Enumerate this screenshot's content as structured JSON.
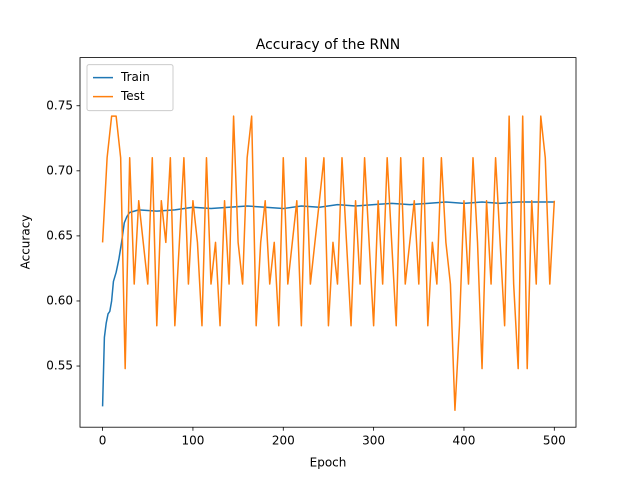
{
  "chart_data": {
    "type": "line",
    "title": "Accuracy of the RNN",
    "xlabel": "Epoch",
    "ylabel": "Accuracy",
    "xlim": [
      -25,
      524
    ],
    "ylim": [
      0.503,
      0.787
    ],
    "xticks": [
      0,
      100,
      200,
      300,
      400,
      500
    ],
    "yticks": [
      0.55,
      {
        "value": 0.6,
        "label": "0.60"
      },
      0.65,
      {
        "value": 0.7,
        "label": "0.70"
      },
      0.75
    ],
    "legend": "upper left",
    "series": [
      {
        "name": "Train",
        "color": "#1f77b4",
        "x": [
          0,
          2,
          4,
          6,
          8,
          10,
          12,
          15,
          18,
          21,
          24,
          27,
          30,
          40,
          60,
          80,
          100,
          120,
          140,
          160,
          180,
          200,
          220,
          240,
          260,
          280,
          300,
          320,
          340,
          360,
          380,
          400,
          420,
          440,
          460,
          480,
          500
        ],
        "values": [
          0.519,
          0.572,
          0.583,
          0.59,
          0.592,
          0.6,
          0.615,
          0.622,
          0.632,
          0.645,
          0.66,
          0.665,
          0.668,
          0.67,
          0.669,
          0.67,
          0.672,
          0.671,
          0.672,
          0.673,
          0.672,
          0.671,
          0.673,
          0.672,
          0.674,
          0.673,
          0.674,
          0.675,
          0.674,
          0.675,
          0.676,
          0.675,
          0.676,
          0.675,
          0.676,
          0.676,
          0.676
        ]
      },
      {
        "name": "Test",
        "color": "#ff7f0e",
        "x": [
          0,
          5,
          10,
          15,
          20,
          25,
          30,
          35,
          40,
          45,
          50,
          55,
          60,
          65,
          70,
          75,
          80,
          85,
          90,
          95,
          100,
          105,
          110,
          115,
          120,
          125,
          130,
          135,
          140,
          145,
          150,
          155,
          160,
          165,
          170,
          175,
          180,
          185,
          190,
          195,
          200,
          205,
          210,
          215,
          220,
          225,
          230,
          235,
          240,
          245,
          250,
          255,
          260,
          265,
          270,
          275,
          280,
          285,
          290,
          295,
          300,
          305,
          310,
          315,
          320,
          325,
          330,
          335,
          340,
          345,
          350,
          355,
          360,
          365,
          370,
          375,
          380,
          385,
          390,
          395,
          400,
          405,
          410,
          415,
          420,
          425,
          430,
          435,
          440,
          445,
          450,
          455,
          460,
          465,
          470,
          475,
          480,
          485,
          490,
          495,
          500
        ],
        "values": [
          0.645,
          0.71,
          0.742,
          0.742,
          0.71,
          0.548,
          0.71,
          0.613,
          0.677,
          0.645,
          0.613,
          0.71,
          0.581,
          0.677,
          0.645,
          0.71,
          0.581,
          0.645,
          0.71,
          0.613,
          0.677,
          0.645,
          0.581,
          0.71,
          0.613,
          0.645,
          0.581,
          0.677,
          0.613,
          0.742,
          0.645,
          0.613,
          0.71,
          0.742,
          0.581,
          0.645,
          0.677,
          0.613,
          0.645,
          0.581,
          0.71,
          0.613,
          0.645,
          0.677,
          0.581,
          0.71,
          0.613,
          0.645,
          0.677,
          0.71,
          0.581,
          0.645,
          0.613,
          0.71,
          0.645,
          0.581,
          0.677,
          0.613,
          0.71,
          0.645,
          0.581,
          0.677,
          0.613,
          0.71,
          0.645,
          0.581,
          0.71,
          0.613,
          0.645,
          0.677,
          0.613,
          0.71,
          0.581,
          0.645,
          0.613,
          0.71,
          0.645,
          0.613,
          0.516,
          0.581,
          0.677,
          0.613,
          0.71,
          0.645,
          0.548,
          0.677,
          0.613,
          0.71,
          0.645,
          0.581,
          0.742,
          0.613,
          0.548,
          0.742,
          0.548,
          0.677,
          0.613,
          0.742,
          0.71,
          0.613,
          0.677
        ]
      }
    ]
  }
}
